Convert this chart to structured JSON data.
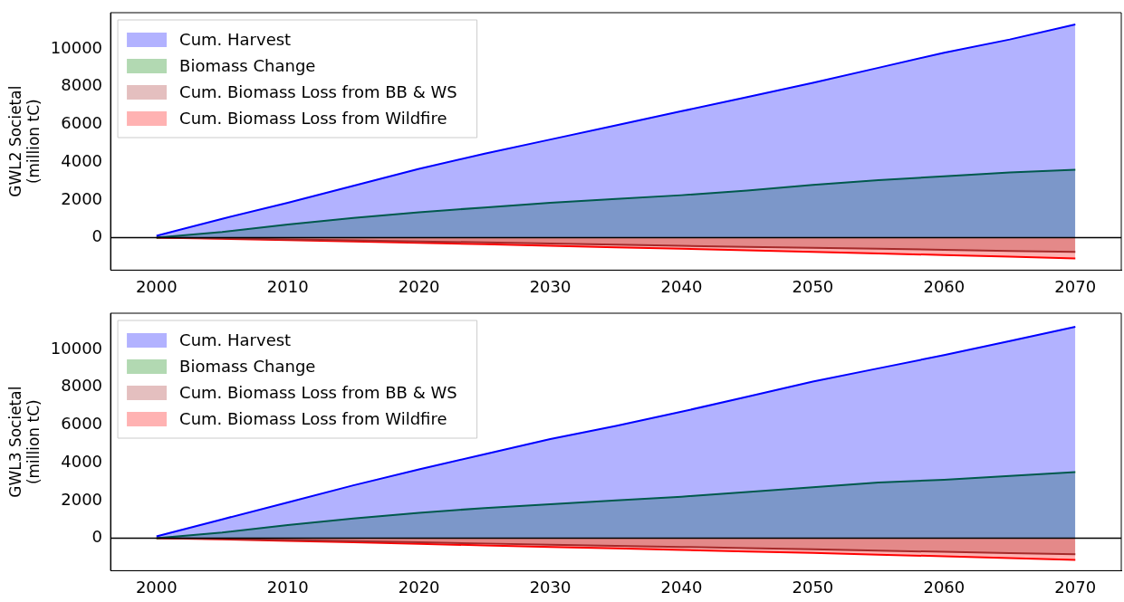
{
  "chart_data": [
    {
      "type": "area",
      "ylabel": "GWL2 Societal\n(million tC)",
      "x": [
        2000,
        2005,
        2010,
        2015,
        2020,
        2025,
        2030,
        2035,
        2040,
        2045,
        2050,
        2055,
        2060,
        2065,
        2070
      ],
      "series": [
        {
          "name": "Cum. Harvest",
          "color": "#0000ff",
          "values": [
            100,
            1000,
            1850,
            2750,
            3650,
            4450,
            5200,
            5950,
            6700,
            7450,
            8200,
            9000,
            9800,
            10500,
            11300
          ]
        },
        {
          "name": "Biomass Change",
          "color": "#008000",
          "values": [
            0,
            300,
            700,
            1050,
            1350,
            1600,
            1850,
            2050,
            2250,
            2500,
            2800,
            3050,
            3250,
            3450,
            3600
          ]
        },
        {
          "name": "Cum. Biomass Loss from BB & WS",
          "color": "#a52a2a",
          "values": [
            0,
            -40,
            -90,
            -140,
            -200,
            -250,
            -310,
            -370,
            -430,
            -490,
            -540,
            -590,
            -640,
            -700,
            -750
          ]
        },
        {
          "name": "Cum. Biomass Loss from Wildfire",
          "color": "#ff0000",
          "values": [
            0,
            -60,
            -130,
            -200,
            -280,
            -350,
            -430,
            -510,
            -590,
            -670,
            -750,
            -840,
            -920,
            -1010,
            -1100
          ]
        }
      ],
      "xlim": [
        1996.5,
        2073.5
      ],
      "xticks": [
        2000,
        2010,
        2020,
        2030,
        2040,
        2050,
        2060,
        2070
      ],
      "ylim": [
        -1720,
        11920
      ],
      "yticks": [
        0,
        2000,
        4000,
        6000,
        8000,
        10000
      ],
      "ref_lines": [
        {
          "axis": "y",
          "value": 0,
          "color": "#000000"
        }
      ],
      "legend": "top left",
      "grid": false,
      "marker": "none"
    },
    {
      "type": "area",
      "ylabel": "GWL3 Societal\n(million tC)",
      "x": [
        2000,
        2005,
        2010,
        2015,
        2020,
        2025,
        2030,
        2035,
        2040,
        2045,
        2050,
        2055,
        2060,
        2065,
        2070
      ],
      "series": [
        {
          "name": "Cum. Harvest",
          "color": "#0000ff",
          "values": [
            100,
            1000,
            1900,
            2800,
            3650,
            4450,
            5250,
            5950,
            6700,
            7500,
            8300,
            9000,
            9700,
            10450,
            11200
          ]
        },
        {
          "name": "Biomass Change",
          "color": "#008000",
          "values": [
            0,
            300,
            700,
            1050,
            1350,
            1600,
            1800,
            2000,
            2200,
            2450,
            2700,
            2950,
            3100,
            3300,
            3500
          ]
        },
        {
          "name": "Cum. Biomass Loss from BB & WS",
          "color": "#a52a2a",
          "values": [
            0,
            -40,
            -100,
            -160,
            -220,
            -280,
            -340,
            -400,
            -460,
            -530,
            -590,
            -660,
            -720,
            -790,
            -850
          ]
        },
        {
          "name": "Cum. Biomass Loss from Wildfire",
          "color": "#ff0000",
          "values": [
            0,
            -60,
            -140,
            -220,
            -300,
            -380,
            -460,
            -540,
            -620,
            -700,
            -780,
            -870,
            -960,
            -1050,
            -1150
          ]
        }
      ],
      "xlim": [
        1996.5,
        2073.5
      ],
      "xticks": [
        2000,
        2010,
        2020,
        2030,
        2040,
        2050,
        2060,
        2070
      ],
      "ylim": [
        -1720,
        11920
      ],
      "yticks": [
        0,
        2000,
        4000,
        6000,
        8000,
        10000
      ],
      "ref_lines": [
        {
          "axis": "y",
          "value": 0,
          "color": "#000000"
        }
      ],
      "legend": "top left",
      "grid": false,
      "marker": "none"
    }
  ]
}
